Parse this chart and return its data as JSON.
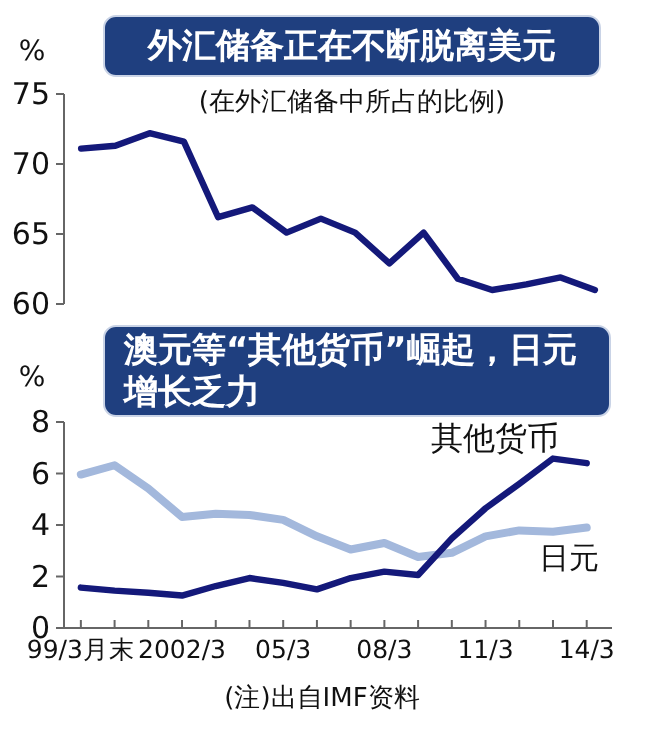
{
  "chart_data": [
    {
      "type": "line",
      "title": "外汇储备正在不断脱离美元",
      "subtitle": "(在外汇储备中所占的比例)",
      "ylabel": "%",
      "categories": [
        null,
        null,
        null,
        null,
        null,
        null,
        null,
        null,
        null,
        null,
        null,
        null,
        null,
        null,
        null,
        null
      ],
      "series": [
        {
          "color": "#14197a",
          "values": [
            71.1,
            71.3,
            72.2,
            71.6,
            66.2,
            66.9,
            65.1,
            66.1,
            65.1,
            62.9,
            65.1,
            61.8,
            61.0,
            61.4,
            61.9,
            61.0
          ]
        }
      ],
      "ylim": [
        60,
        75
      ],
      "yticks": [
        60,
        65,
        70,
        75
      ],
      "tick_labels": "y"
    },
    {
      "type": "line",
      "title": "澳元等“其他货币”崛起，日元增长乏力",
      "ylabel": "%",
      "x": [
        "1999-03",
        "2000-03",
        "2001-03",
        "2002-03",
        "2003-03",
        "2004-03",
        "2005-03",
        "2006-03",
        "2007-03",
        "2008-03",
        "2009-03",
        "2010-03",
        "2011-03",
        "2012-03",
        "2013-03",
        "2014-03"
      ],
      "series": [
        {
          "name": "日元",
          "color": "#a3b8dc",
          "values": [
            5.96,
            6.32,
            5.42,
            4.31,
            4.44,
            4.39,
            4.2,
            3.56,
            3.05,
            3.3,
            2.76,
            2.92,
            3.56,
            3.79,
            3.74,
            3.9
          ]
        },
        {
          "name": "其他货币",
          "color": "#14197a",
          "values": [
            1.57,
            1.45,
            1.37,
            1.26,
            1.63,
            1.94,
            1.75,
            1.5,
            1.94,
            2.19,
            2.06,
            3.48,
            4.65,
            5.6,
            6.58,
            6.4
          ]
        }
      ],
      "xlim": [
        "1998-09",
        "2014-12"
      ],
      "xticks": [
        {
          "value": "1999-03",
          "label": "99/3月末"
        },
        {
          "value": "2000-03",
          "label": null
        },
        {
          "value": "2001-03",
          "label": null
        },
        {
          "value": "2002-03",
          "label": "2002/3"
        },
        {
          "value": "2003-03",
          "label": null
        },
        {
          "value": "2004-03",
          "label": null
        },
        {
          "value": "2005-03",
          "label": "05/3"
        },
        {
          "value": "2006-03",
          "label": null
        },
        {
          "value": "2007-03",
          "label": null
        },
        {
          "value": "2008-03",
          "label": "08/3"
        },
        {
          "value": "2009-03",
          "label": null
        },
        {
          "value": "2010-03",
          "label": null
        },
        {
          "value": "2011-03",
          "label": "11/3"
        },
        {
          "value": "2012-03",
          "label": null
        },
        {
          "value": "2013-03",
          "label": null
        },
        {
          "value": "2014-03",
          "label": "14/3"
        }
      ],
      "ylim": [
        0,
        8
      ],
      "yticks": [
        0,
        2,
        4,
        6,
        8
      ],
      "annotations": [
        "(注)出自IMF资料"
      ]
    }
  ]
}
